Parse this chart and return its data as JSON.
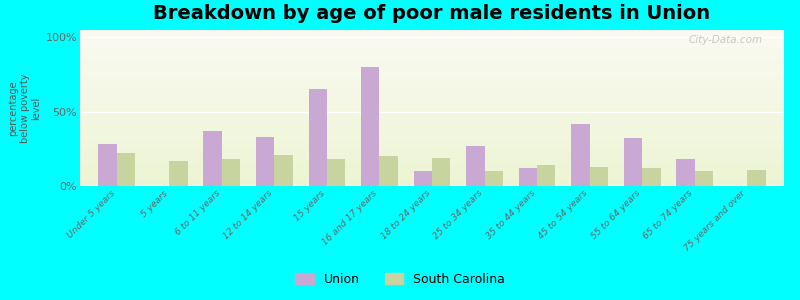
{
  "title": "Breakdown by age of poor male residents in Union",
  "ylabel": "percentage\nbelow poverty\nlevel",
  "categories": [
    "Under 5 years",
    "5 years",
    "6 to 11 years",
    "12 to 14 years",
    "15 years",
    "16 and 17 years",
    "18 to 24 years",
    "25 to 34 years",
    "35 to 44 years",
    "45 to 54 years",
    "55 to 64 years",
    "65 to 74 years",
    "75 years and over"
  ],
  "union_values": [
    28,
    0,
    37,
    33,
    65,
    80,
    10,
    27,
    12,
    42,
    32,
    18,
    0
  ],
  "sc_values": [
    22,
    17,
    18,
    21,
    18,
    20,
    19,
    10,
    14,
    13,
    12,
    10,
    11
  ],
  "union_color": "#c9a8d4",
  "sc_color": "#c8d4a0",
  "background_color": "#00ffff",
  "yticks": [
    0,
    50,
    100
  ],
  "ytick_labels": [
    "0%",
    "50%",
    "100%"
  ],
  "ylim": [
    0,
    105
  ],
  "bar_width": 0.35,
  "title_fontsize": 14,
  "legend_labels": [
    "Union",
    "South Carolina"
  ],
  "watermark": "City-Data.com"
}
